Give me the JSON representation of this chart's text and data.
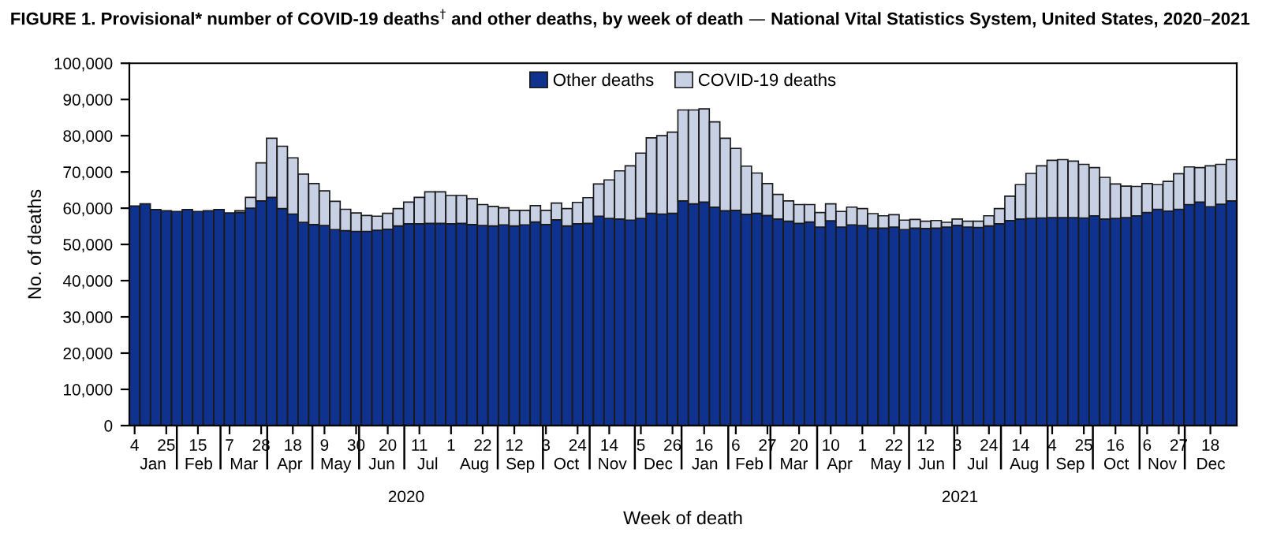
{
  "chart_data": {
    "type": "bar",
    "stacked": true,
    "title": "FIGURE 1. Provisional* number of COVID-19 deaths$^{†}$ and other deaths, by week of death — National Vital Statistics System, United States, 2020–2021",
    "xlabel": "Week of death",
    "ylabel": "No. of deaths",
    "x": [
      "2020-01-04",
      "2020-01-11",
      "2020-01-18",
      "2020-01-25",
      "2020-02-01",
      "2020-02-08",
      "2020-02-15",
      "2020-02-22",
      "2020-02-29",
      "2020-03-07",
      "2020-03-14",
      "2020-03-21",
      "2020-03-28",
      "2020-04-04",
      "2020-04-11",
      "2020-04-18",
      "2020-04-25",
      "2020-05-02",
      "2020-05-09",
      "2020-05-16",
      "2020-05-23",
      "2020-05-30",
      "2020-06-06",
      "2020-06-13",
      "2020-06-20",
      "2020-06-27",
      "2020-07-04",
      "2020-07-11",
      "2020-07-18",
      "2020-07-25",
      "2020-08-01",
      "2020-08-08",
      "2020-08-15",
      "2020-08-22",
      "2020-08-29",
      "2020-09-05",
      "2020-09-12",
      "2020-09-19",
      "2020-09-26",
      "2020-10-03",
      "2020-10-10",
      "2020-10-17",
      "2020-10-24",
      "2020-10-31",
      "2020-11-07",
      "2020-11-14",
      "2020-11-21",
      "2020-11-28",
      "2020-12-05",
      "2020-12-12",
      "2020-12-19",
      "2020-12-26",
      "2021-01-02",
      "2021-01-09",
      "2021-01-16",
      "2021-01-23",
      "2021-01-30",
      "2021-02-06",
      "2021-02-13",
      "2021-02-20",
      "2021-02-27",
      "2021-03-06",
      "2021-03-13",
      "2021-03-20",
      "2021-03-27",
      "2021-04-03",
      "2021-04-10",
      "2021-04-17",
      "2021-04-24",
      "2021-05-01",
      "2021-05-08",
      "2021-05-15",
      "2021-05-22",
      "2021-05-29",
      "2021-06-05",
      "2021-06-12",
      "2021-06-19",
      "2021-06-26",
      "2021-07-03",
      "2021-07-10",
      "2021-07-17",
      "2021-07-24",
      "2021-07-31",
      "2021-08-07",
      "2021-08-14",
      "2021-08-21",
      "2021-08-28",
      "2021-09-04",
      "2021-09-11",
      "2021-09-18",
      "2021-09-25",
      "2021-10-02",
      "2021-10-09",
      "2021-10-16",
      "2021-10-23",
      "2021-10-30",
      "2021-11-06",
      "2021-11-13",
      "2021-11-20",
      "2021-11-27",
      "2021-12-04",
      "2021-12-11",
      "2021-12-18",
      "2021-12-25",
      "2022-01-01"
    ],
    "series": [
      {
        "name": "Other deaths",
        "color": "#10328f",
        "values": [
          60600,
          61200,
          59600,
          59300,
          59100,
          59600,
          59100,
          59300,
          59600,
          58700,
          58800,
          60000,
          62000,
          63000,
          59900,
          58400,
          56100,
          55500,
          55200,
          54100,
          53800,
          53600,
          53600,
          53900,
          54200,
          55100,
          55700,
          55700,
          55800,
          55800,
          55700,
          55800,
          55500,
          55200,
          55100,
          55400,
          55100,
          55400,
          56200,
          55500,
          56800,
          55100,
          55700,
          55800,
          57800,
          57200,
          57000,
          56700,
          57200,
          58600,
          58400,
          58600,
          62000,
          61200,
          61700,
          60300,
          59300,
          59400,
          58300,
          58600,
          58000,
          57000,
          56400,
          55800,
          56200,
          54800,
          56500,
          54800,
          55400,
          55200,
          54500,
          54500,
          54800,
          54100,
          54500,
          54400,
          54500,
          54800,
          55300,
          54800,
          54700,
          55100,
          55700,
          56600,
          57000,
          57200,
          57300,
          57400,
          57400,
          57400,
          57300,
          57900,
          57000,
          57200,
          57400,
          57900,
          58800,
          59700,
          59200,
          59700,
          61000,
          61700,
          60400,
          61100,
          62000
        ]
      },
      {
        "name": "COVID-19 deaths",
        "color": "#c8d0e4",
        "values": [
          null,
          null,
          null,
          null,
          null,
          null,
          null,
          null,
          null,
          null,
          500,
          3000,
          10500,
          16300,
          17200,
          15500,
          13300,
          11300,
          9600,
          7800,
          5900,
          5100,
          4400,
          3900,
          4400,
          4800,
          6000,
          7300,
          8700,
          8700,
          7800,
          7700,
          7100,
          5800,
          5400,
          4700,
          4300,
          4000,
          4500,
          3900,
          4600,
          4800,
          5900,
          7100,
          8900,
          10600,
          13300,
          15000,
          18000,
          20800,
          21600,
          22400,
          25100,
          25900,
          25700,
          23500,
          20000,
          17100,
          13300,
          11100,
          8800,
          6800,
          5600,
          5200,
          4800,
          4000,
          4700,
          4300,
          4900,
          4700,
          4000,
          3400,
          3400,
          2600,
          2400,
          2000,
          2100,
          1300,
          1700,
          1600,
          1700,
          2800,
          4200,
          6700,
          9500,
          12400,
          14400,
          15800,
          16000,
          15600,
          14800,
          13300,
          11500,
          9500,
          8700,
          8100,
          8000,
          6800,
          8200,
          9800,
          10400,
          9500,
          11300,
          11000,
          11400
        ]
      }
    ],
    "xlim": [
      "2019-12-31T12:00",
      "2022-01-04T12:00"
    ],
    "xticks": [
      {
        "value": "2020-01-04",
        "label": "4"
      },
      {
        "value": "2020-01-25",
        "label": "25"
      },
      {
        "value": "2020-02-15",
        "label": "15"
      },
      {
        "value": "2020-03-07",
        "label": "7"
      },
      {
        "value": "2020-03-28",
        "label": "28"
      },
      {
        "value": "2020-04-18",
        "label": "18"
      },
      {
        "value": "2020-05-09",
        "label": "9"
      },
      {
        "value": "2020-05-30",
        "label": "30"
      },
      {
        "value": "2020-06-20",
        "label": "20"
      },
      {
        "value": "2020-07-11",
        "label": "11"
      },
      {
        "value": "2020-08-01",
        "label": "1"
      },
      {
        "value": "2020-08-22",
        "label": "22"
      },
      {
        "value": "2020-09-12",
        "label": "12"
      },
      {
        "value": "2020-10-03",
        "label": "3"
      },
      {
        "value": "2020-10-24",
        "label": "24"
      },
      {
        "value": "2020-11-14",
        "label": "14"
      },
      {
        "value": "2020-12-05",
        "label": "5"
      },
      {
        "value": "2020-12-26",
        "label": "26"
      },
      {
        "value": "2021-01-16",
        "label": "16"
      },
      {
        "value": "2021-02-06",
        "label": "6"
      },
      {
        "value": "2021-02-27",
        "label": "27"
      },
      {
        "value": "2021-03-20",
        "label": "20"
      },
      {
        "value": "2021-04-10",
        "label": "10"
      },
      {
        "value": "2021-05-01",
        "label": "1"
      },
      {
        "value": "2021-05-22",
        "label": "22"
      },
      {
        "value": "2021-06-12",
        "label": "12"
      },
      {
        "value": "2021-07-03",
        "label": "3"
      },
      {
        "value": "2021-07-24",
        "label": "24"
      },
      {
        "value": "2021-08-14",
        "label": "14"
      },
      {
        "value": "2021-09-04",
        "label": "4"
      },
      {
        "value": "2021-09-25",
        "label": "25"
      },
      {
        "value": "2021-10-16",
        "label": "16"
      },
      {
        "value": "2021-11-06",
        "label": "6"
      },
      {
        "value": "2021-11-27",
        "label": "27"
      },
      {
        "value": "2021-12-18",
        "label": "18"
      }
    ],
    "ylim": [
      0,
      100000
    ],
    "yticks": [
      0,
      {
        "value": 10000,
        "label": "10,000"
      },
      {
        "value": 20000,
        "label": "20,000"
      },
      {
        "value": 30000,
        "label": "30,000"
      },
      {
        "value": 40000,
        "label": "40,000"
      },
      {
        "value": 50000,
        "label": "50,000"
      },
      {
        "value": 60000,
        "label": "60,000"
      },
      {
        "value": 70000,
        "label": "70,000"
      },
      {
        "value": 80000,
        "label": "80,000"
      },
      {
        "value": 90000,
        "label": "90,000"
      },
      {
        "value": 100000,
        "label": "100,000"
      }
    ],
    "annotations": [
      "Jan",
      "Feb",
      "Mar",
      "Apr",
      "May",
      "Jun",
      "Jul",
      "Aug",
      "Sep",
      "Oct",
      "Nov",
      "Dec",
      "Jan",
      "Feb",
      "Mar",
      "Apr",
      "May",
      "Jun",
      "Jul",
      "Aug",
      "Sep",
      "Oct",
      "Nov",
      "Dec",
      "2020",
      "2021"
    ],
    "legend": "top"
  }
}
